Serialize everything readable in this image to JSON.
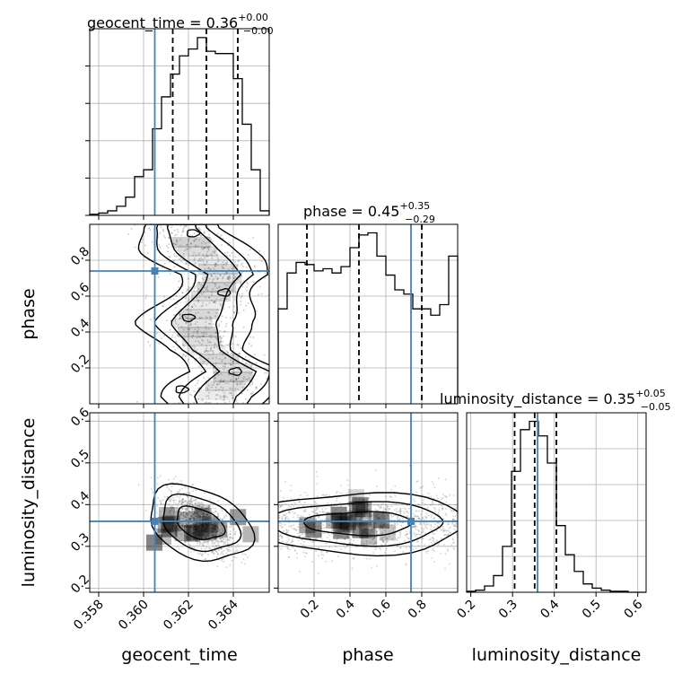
{
  "figure": {
    "type": "corner-plot",
    "parameters": [
      "geocent_time",
      "phase",
      "luminosity_distance"
    ]
  },
  "titles": {
    "geocent_time": {
      "name": "geocent_time",
      "median": "0.36",
      "plus": "+0.00",
      "minus": "−0.00"
    },
    "phase": {
      "name": "phase",
      "median": "0.45",
      "plus": "+0.35",
      "minus": "−0.29"
    },
    "luminosity_distance": {
      "name": "luminosity_distance",
      "median": "0.35",
      "plus": "+0.05",
      "minus": "−0.05"
    }
  },
  "axis_labels": {
    "geocent_time": "geocent_time",
    "phase": "phase",
    "luminosity_distance": "luminosity_distance"
  },
  "colors": {
    "truth": "#4682b4",
    "hist": "#000000",
    "grid": "#b0b0b0",
    "contour": "#000000"
  },
  "chart_data": [
    {
      "type": "histogram",
      "param": "geocent_time",
      "xlim": [
        0.3576,
        0.3656
      ],
      "ticks": [
        0.358,
        0.36,
        0.362,
        0.364
      ],
      "tick_labels": [
        "0.358",
        "0.360",
        "0.362",
        "0.364"
      ],
      "bin_edges": [
        0.3576,
        0.358,
        0.3584,
        0.3588,
        0.3592,
        0.3596,
        0.36,
        0.3604,
        0.3608,
        0.3612,
        0.3616,
        0.362,
        0.3624,
        0.3628,
        0.3632,
        0.3636,
        0.364,
        0.3644,
        0.3648,
        0.3652,
        0.3656
      ],
      "counts": [
        0.5,
        1,
        2,
        4,
        8,
        17,
        20,
        38,
        52,
        62,
        70,
        73,
        78,
        72,
        71,
        71,
        60,
        40,
        20,
        2
      ],
      "quantiles": [
        0.3613,
        0.3628,
        0.3642
      ],
      "truth": 0.3605
    },
    {
      "type": "histogram",
      "param": "phase",
      "xlim": [
        0.0,
        1.0
      ],
      "ticks": [
        0.2,
        0.4,
        0.6,
        0.8
      ],
      "tick_labels": [
        "0.2",
        "0.4",
        "0.6",
        "0.8"
      ],
      "bin_edges": [
        0.0,
        0.05,
        0.1,
        0.15,
        0.2,
        0.25,
        0.3,
        0.35,
        0.4,
        0.45,
        0.5,
        0.55,
        0.6,
        0.65,
        0.7,
        0.75,
        0.8,
        0.85,
        0.9,
        0.95,
        1.0
      ],
      "counts": [
        45,
        62,
        67,
        66,
        63,
        64,
        62,
        65,
        74,
        80,
        81,
        70,
        61,
        54,
        52,
        45,
        45,
        42,
        47,
        70
      ],
      "quantiles": [
        0.16,
        0.45,
        0.8
      ],
      "truth": 0.74
    },
    {
      "type": "histogram",
      "param": "luminosity_distance",
      "xlim": [
        0.19,
        0.62
      ],
      "ticks": [
        0.2,
        0.3,
        0.4,
        0.5,
        0.6
      ],
      "tick_labels": [
        "0.2",
        "0.3",
        "0.4",
        "0.5",
        "0.6"
      ],
      "bin_edges": [
        0.19,
        0.2115,
        0.233,
        0.2545,
        0.276,
        0.2975,
        0.319,
        0.3405,
        0.362,
        0.3835,
        0.405,
        0.4265,
        0.448,
        0.4695,
        0.491,
        0.5125,
        0.534,
        0.5555,
        0.577,
        0.5985,
        0.62
      ],
      "counts": [
        0.5,
        1,
        3,
        8,
        22,
        58,
        78,
        82,
        75,
        62,
        32,
        18,
        10,
        4,
        2,
        1,
        0.5,
        0.5,
        0,
        0
      ],
      "quantiles": [
        0.305,
        0.353,
        0.405
      ],
      "truth": 0.36
    },
    {
      "type": "contour",
      "x": "geocent_time",
      "y": "phase",
      "xlim": [
        0.3576,
        0.3656
      ],
      "ylim": [
        0.0,
        1.0
      ],
      "yticks": [
        0.2,
        0.4,
        0.6,
        0.8
      ],
      "ytick_labels": [
        "0.2",
        "0.4",
        "0.6",
        "0.8"
      ],
      "ridge": {
        "y": [
          0.98,
          0.85,
          0.72,
          0.6,
          0.45,
          0.3,
          0.18,
          0.04
        ],
        "x": [
          0.3617,
          0.3624,
          0.3636,
          0.363,
          0.3622,
          0.3628,
          0.3642,
          0.3632
        ]
      },
      "truth": [
        0.3605,
        0.74
      ]
    },
    {
      "type": "contour",
      "x": "geocent_time",
      "y": "luminosity_distance",
      "xlim": [
        0.3576,
        0.3656
      ],
      "ylim": [
        0.19,
        0.62
      ],
      "yticks": [
        0.2,
        0.3,
        0.4,
        0.5,
        0.6
      ],
      "ytick_labels": [
        "0.2",
        "0.3",
        "0.4",
        "0.5",
        "0.6"
      ],
      "center": [
        0.3625,
        0.355
      ],
      "truth": [
        0.3605,
        0.36
      ]
    },
    {
      "type": "contour",
      "x": "phase",
      "y": "luminosity_distance",
      "xlim": [
        0.0,
        1.0
      ],
      "ylim": [
        0.19,
        0.62
      ],
      "center": [
        0.45,
        0.355
      ],
      "truth": [
        0.74,
        0.36
      ]
    }
  ]
}
